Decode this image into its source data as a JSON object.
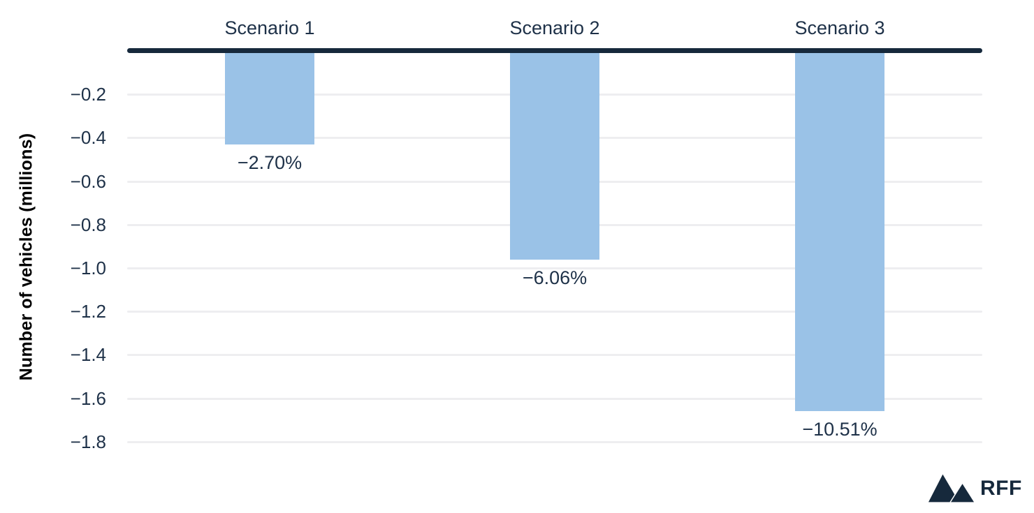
{
  "chart_data": {
    "type": "bar",
    "title": "",
    "categories": [
      "Scenario 1",
      "Scenario 2",
      "Scenario 3"
    ],
    "values": [
      -0.43,
      -0.96,
      -1.66
    ],
    "bar_labels": [
      "−2.70%",
      "−6.06%",
      "−10.51%"
    ],
    "xlabel": "",
    "ylabel": "Number of vehicles (millions)",
    "yticks": [
      -0.2,
      -0.4,
      -0.6,
      -0.8,
      -1.0,
      -1.2,
      -1.4,
      -1.6,
      -1.8
    ],
    "ytick_labels": [
      "−0.2",
      "−0.4",
      "−0.6",
      "−0.8",
      "−1.0",
      "−1.2",
      "−1.4",
      "−1.6",
      "−1.8"
    ],
    "ylim": [
      -1.9,
      0
    ],
    "grid": true,
    "legend_position": "none",
    "colors": {
      "bar": "#9AC2E7",
      "axis_line": "#16293C",
      "text": "#1E3148",
      "ylabel_text": "#000000",
      "gridline": "#EEEEF0",
      "background": "#FFFFFF"
    }
  },
  "branding": {
    "logo_icon": "rff-mountains-icon",
    "logo_text": "RFF",
    "logo_color": "#16293C"
  }
}
